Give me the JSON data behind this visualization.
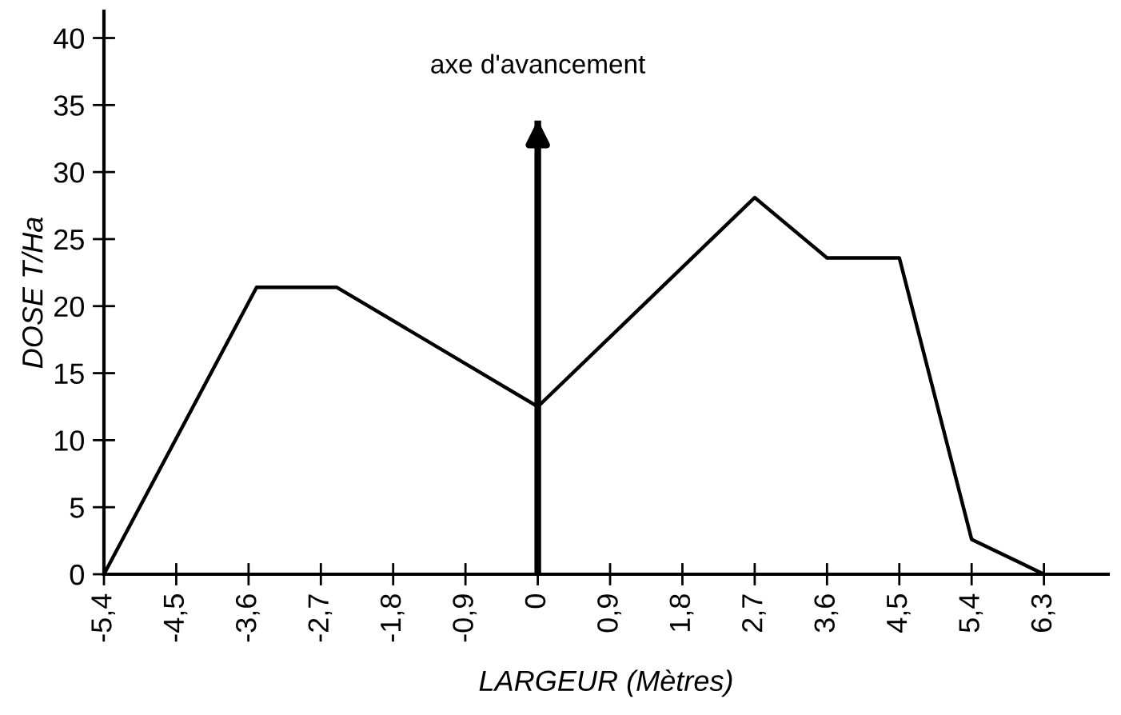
{
  "chart_data": {
    "type": "line",
    "xlabel": "LARGEUR (Mètres)",
    "ylabel": "DOSE T/Ha",
    "x": [
      -5.4,
      -3.5,
      -2.5,
      0,
      2.7,
      3.6,
      4.5,
      5.4,
      6.3
    ],
    "series": [
      {
        "color": "#000000",
        "values": [
          0,
          21.4,
          21.4,
          12.5,
          28.1,
          23.6,
          23.6,
          2.6,
          0
        ]
      }
    ],
    "xlim": [
      -5.4,
      7.1
    ],
    "ylim": [
      0,
      42
    ],
    "xticks": [
      {
        "value": -5.4,
        "label": "-5,4"
      },
      {
        "value": -4.5,
        "label": "-4,5"
      },
      {
        "value": -3.6,
        "label": "-3,6"
      },
      {
        "value": -2.7,
        "label": "-2,7"
      },
      {
        "value": -1.8,
        "label": "-1,8"
      },
      {
        "value": -0.9,
        "label": "-0,9"
      },
      0,
      {
        "value": 0.9,
        "label": "0,9"
      },
      {
        "value": 1.8,
        "label": "1,8"
      },
      {
        "value": 2.7,
        "label": "2,7"
      },
      {
        "value": 3.6,
        "label": "3,6"
      },
      {
        "value": 4.5,
        "label": "4,5"
      },
      {
        "value": 5.4,
        "label": "5,4"
      },
      {
        "value": 6.3,
        "label": "6,3"
      }
    ],
    "yticks": [
      0,
      5,
      10,
      15,
      20,
      25,
      30,
      35,
      40
    ],
    "ref_lines": [
      {
        "axis": "x",
        "value": 0,
        "label": "axe d'avancement",
        "color": "#000000"
      }
    ],
    "grid": false,
    "marker": "none",
    "line_style": "solid"
  }
}
